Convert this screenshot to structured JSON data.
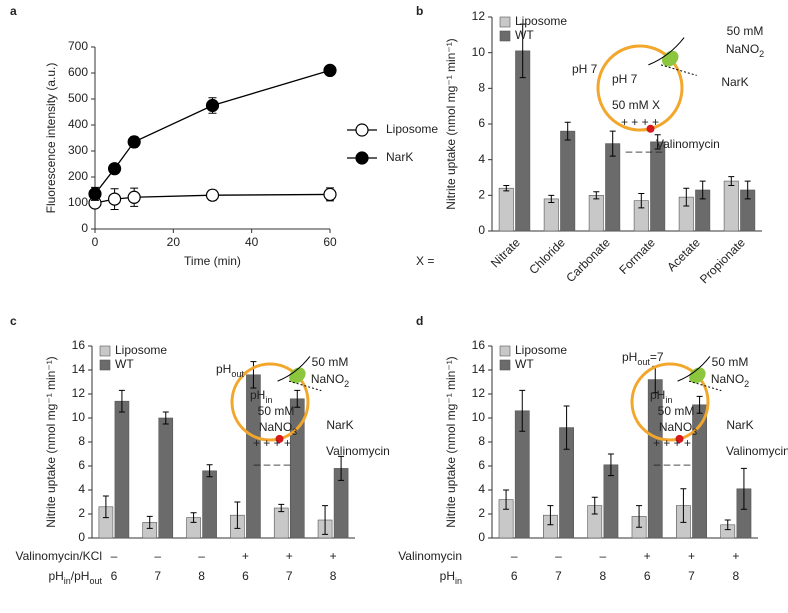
{
  "chart_data": [
    {
      "type": "line",
      "panel_label": "a",
      "x_label": "Time (min)",
      "y_label": "Fluorescence intensity (a.u.)",
      "x": [
        0,
        5,
        10,
        30,
        60
      ],
      "xlim": [
        0,
        60
      ],
      "xticks": [
        0,
        20,
        40,
        60
      ],
      "ylim": [
        0,
        700
      ],
      "yticks": [
        0,
        100,
        200,
        300,
        400,
        500,
        600,
        700
      ],
      "legend": "right",
      "series": [
        {
          "name": "Liposome",
          "color": "#ffffff",
          "values": [
            100,
            115,
            122,
            130,
            133
          ],
          "errors": [
            15,
            40,
            35,
            20,
            25
          ]
        },
        {
          "name": "NarK",
          "color": "#000000",
          "values": [
            135,
            232,
            335,
            475,
            610
          ],
          "errors": [
            25,
            12,
            20,
            30,
            15
          ]
        }
      ]
    },
    {
      "type": "bar",
      "panel_label": "b",
      "y_label": "Nitrite uptake (nmol mg⁻¹ min⁻¹)",
      "category_prefix": "X =",
      "categories": [
        "Nitrate",
        "Chloride",
        "Carbonate",
        "Formate",
        "Acetate",
        "Propionate"
      ],
      "ylim": [
        0,
        12
      ],
      "yticks": [
        0,
        2,
        4,
        6,
        8,
        10,
        12
      ],
      "legend": "upper left",
      "series": [
        {
          "name": "Liposome",
          "color": "#c8c8c8",
          "values": [
            2.4,
            1.8,
            2.0,
            1.7,
            1.9,
            2.8
          ],
          "errors": [
            0.15,
            0.2,
            0.2,
            0.4,
            0.5,
            0.25
          ]
        },
        {
          "name": "WT",
          "color": "#6b6b6b",
          "values": [
            10.1,
            5.6,
            4.9,
            5.0,
            2.3,
            2.3
          ],
          "errors": [
            1.5,
            0.5,
            0.7,
            0.4,
            0.5,
            0.5
          ]
        }
      ],
      "annotations": [
        [
          "pH 7"
        ],
        [
          "pH 7"
        ],
        [
          "50 mM"
        ],
        [
          "NaNO",
          "2"
        ],
        [
          "50 mM X"
        ],
        [
          "NarK"
        ],
        [
          "+ + + +"
        ],
        [
          "Valinomycin"
        ],
        [
          "– – – –"
        ]
      ]
    },
    {
      "type": "bar",
      "panel_label": "c",
      "y_label": "Nitrite uptake (nmol mg⁻¹ min⁻¹)",
      "categories": [
        null,
        null,
        null,
        null,
        null,
        null
      ],
      "category_rows": [
        {
          "name": [
            "Valinomycin/KCl"
          ],
          "labels": [
            "–",
            "–",
            "–",
            "+",
            "+",
            "+"
          ]
        },
        {
          "name": [
            "pH",
            "in",
            "/pH",
            "out"
          ],
          "labels": [
            "6",
            "7",
            "8",
            "6",
            "7",
            "8"
          ]
        }
      ],
      "ylim": [
        0,
        16
      ],
      "yticks": [
        0,
        2,
        4,
        6,
        8,
        10,
        12,
        14,
        16
      ],
      "legend": "upper left",
      "series": [
        {
          "name": "Liposome",
          "color": "#c8c8c8",
          "values": [
            2.6,
            1.3,
            1.7,
            1.9,
            2.5,
            1.5
          ],
          "errors": [
            0.9,
            0.5,
            0.4,
            1.1,
            0.3,
            1.2
          ]
        },
        {
          "name": "WT",
          "color": "#6b6b6b",
          "values": [
            11.4,
            10.0,
            5.6,
            13.6,
            11.6,
            5.8
          ],
          "errors": [
            0.9,
            0.5,
            0.5,
            1.1,
            0.7,
            1.0
          ]
        }
      ],
      "annotations": [
        [
          "pH",
          "out"
        ],
        [
          "pH",
          "in"
        ],
        [
          "50 mM"
        ],
        [
          "NaNO",
          "2"
        ],
        [
          "50 mM"
        ],
        [
          "NaNO",
          "3"
        ],
        [
          "NarK"
        ],
        [
          "+ + + +"
        ],
        [
          "Valinomycin"
        ],
        [
          "– – – –"
        ]
      ]
    },
    {
      "type": "bar",
      "panel_label": "d",
      "y_label": "Nitrite uptake (nmol mg⁻¹ min⁻¹)",
      "categories": [
        null,
        null,
        null,
        null,
        null,
        null
      ],
      "category_rows": [
        {
          "name": [
            "Valinomycin"
          ],
          "labels": [
            "–",
            "–",
            "–",
            "+",
            "+",
            "+"
          ]
        },
        {
          "name": [
            "pH",
            "in"
          ],
          "labels": [
            "6",
            "7",
            "8",
            "6",
            "7",
            "8"
          ]
        }
      ],
      "ylim": [
        0,
        16
      ],
      "yticks": [
        0,
        2,
        4,
        6,
        8,
        10,
        12,
        14,
        16
      ],
      "legend": "upper left",
      "series": [
        {
          "name": "Liposome",
          "color": "#c8c8c8",
          "values": [
            3.2,
            1.9,
            2.7,
            1.8,
            2.7,
            1.1
          ],
          "errors": [
            0.8,
            0.8,
            0.7,
            0.9,
            1.4,
            0.4
          ]
        },
        {
          "name": "WT",
          "color": "#6b6b6b",
          "values": [
            10.6,
            9.2,
            6.1,
            13.2,
            11.1,
            4.1
          ],
          "errors": [
            1.7,
            1.8,
            0.9,
            1.1,
            0.7,
            1.7
          ]
        }
      ],
      "annotations": [
        [
          "pH",
          "out",
          "=7"
        ],
        [
          "pH",
          "in"
        ],
        [
          "50 mM"
        ],
        [
          "NaNO",
          "2"
        ],
        [
          "50 mM"
        ],
        [
          "NaNO",
          "3"
        ],
        [
          "NarK"
        ],
        [
          "+ + + +"
        ],
        [
          "Valinomycin"
        ],
        [
          "– – – –"
        ]
      ]
    }
  ]
}
